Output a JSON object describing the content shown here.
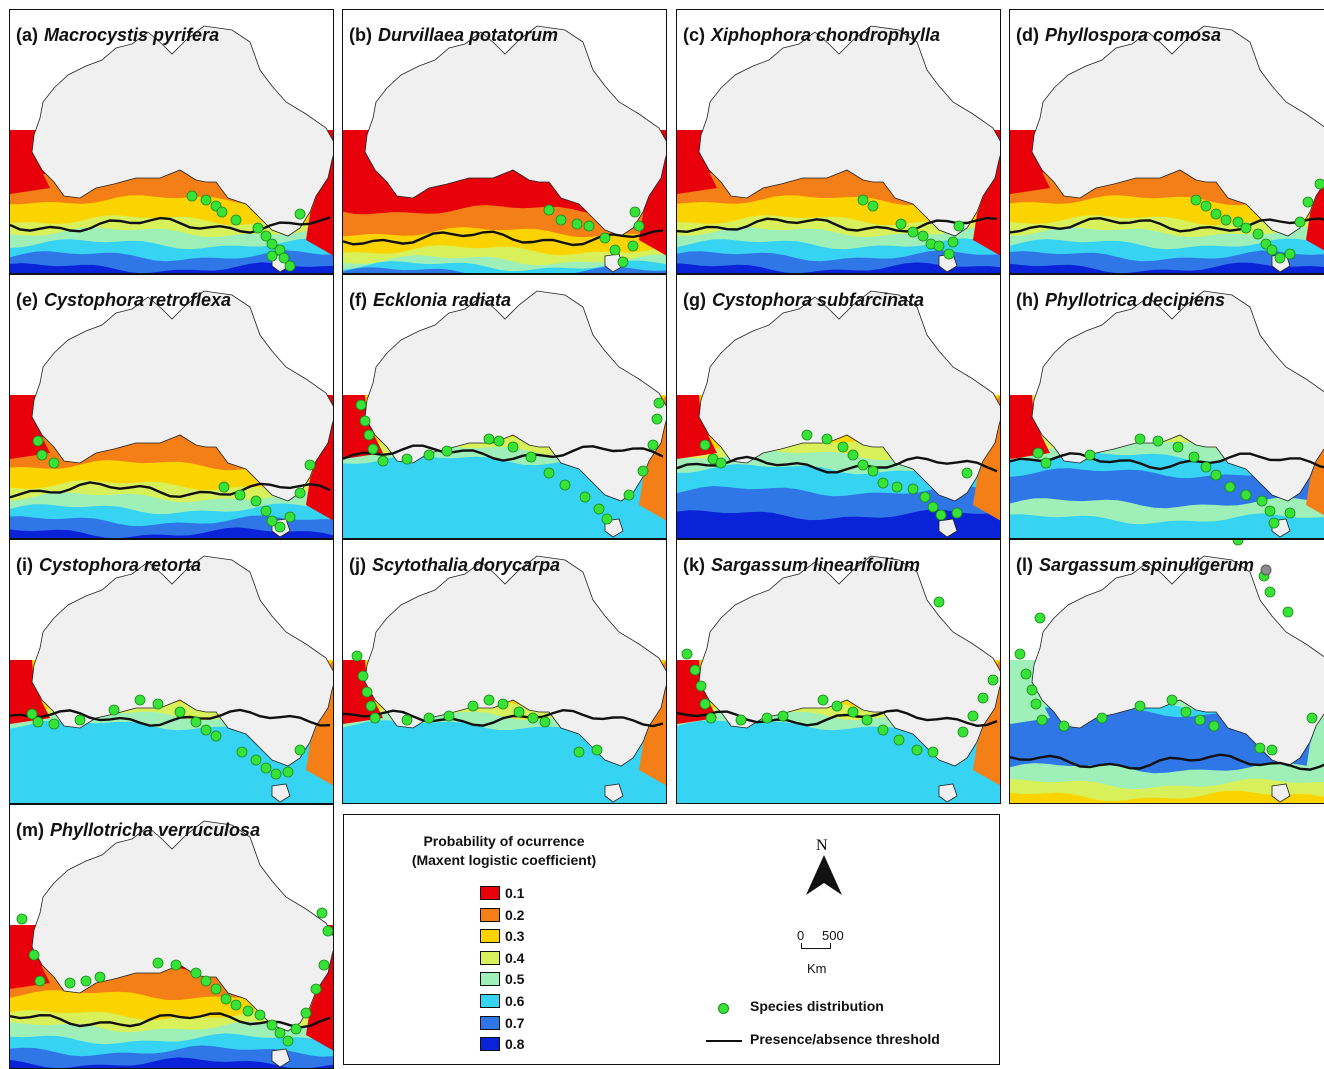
{
  "panels": [
    {
      "letter": "(a)",
      "species": "Macrocystis pyrifera",
      "profile": "cold",
      "points": "A"
    },
    {
      "letter": "(b)",
      "species": "Durvillaea potatorum",
      "profile": "red",
      "points": "B"
    },
    {
      "letter": "(c)",
      "species": "Xiphophora chondrophylla",
      "profile": "cold",
      "points": "C"
    },
    {
      "letter": "(d)",
      "species": "Phyllospora comosa",
      "profile": "cold",
      "points": "D"
    },
    {
      "letter": "(e)",
      "species": "Cystophora retroflexa",
      "profile": "cold",
      "points": "E"
    },
    {
      "letter": "(f)",
      "species": "Ecklonia radiata",
      "profile": "cyan",
      "points": "F"
    },
    {
      "letter": "(g)",
      "species": "Cystophora subfarcinata",
      "profile": "mixed",
      "points": "G"
    },
    {
      "letter": "(h)",
      "species": "Phyllotrica decipiens",
      "profile": "blue",
      "points": "H"
    },
    {
      "letter": "(i)",
      "species": "Cystophora retorta",
      "profile": "cyan",
      "points": "I"
    },
    {
      "letter": "(j)",
      "species": "Scytothalia dorycarpa",
      "profile": "cyan",
      "points": "J"
    },
    {
      "letter": "(k)",
      "species": "Sargassum linearifolium",
      "profile": "cyan",
      "points": "K"
    },
    {
      "letter": "(l)",
      "species": "Sargassum spinuligerum",
      "profile": "deepblue",
      "points": "L"
    },
    {
      "letter": "(m)",
      "species": "Phyllotricha verruculosa",
      "profile": "cold",
      "points": "M"
    }
  ],
  "legend": {
    "title_line1": "Probability of ocurrence",
    "title_line2": "(Maxent logistic coefficient)",
    "classes": [
      {
        "value": "0.1",
        "color": "#e8000b"
      },
      {
        "value": "0.2",
        "color": "#f57f17"
      },
      {
        "value": "0.3",
        "color": "#fbd400"
      },
      {
        "value": "0.4",
        "color": "#d8f05a"
      },
      {
        "value": "0.5",
        "color": "#9ff0b8"
      },
      {
        "value": "0.6",
        "color": "#36d3f2"
      },
      {
        "value": "0.7",
        "color": "#2f77e6"
      },
      {
        "value": "0.8",
        "color": "#0a22d8"
      }
    ],
    "north_label": "N",
    "scale_zero": "0",
    "scale_max": "500",
    "scale_unit": "Km",
    "species_label": "Species distribution",
    "threshold_label": "Presence/absence threshold"
  },
  "colors": {
    "land": "#f0f0f0",
    "occurrence_point": "#36e336",
    "threshold_line": "#111111"
  }
}
